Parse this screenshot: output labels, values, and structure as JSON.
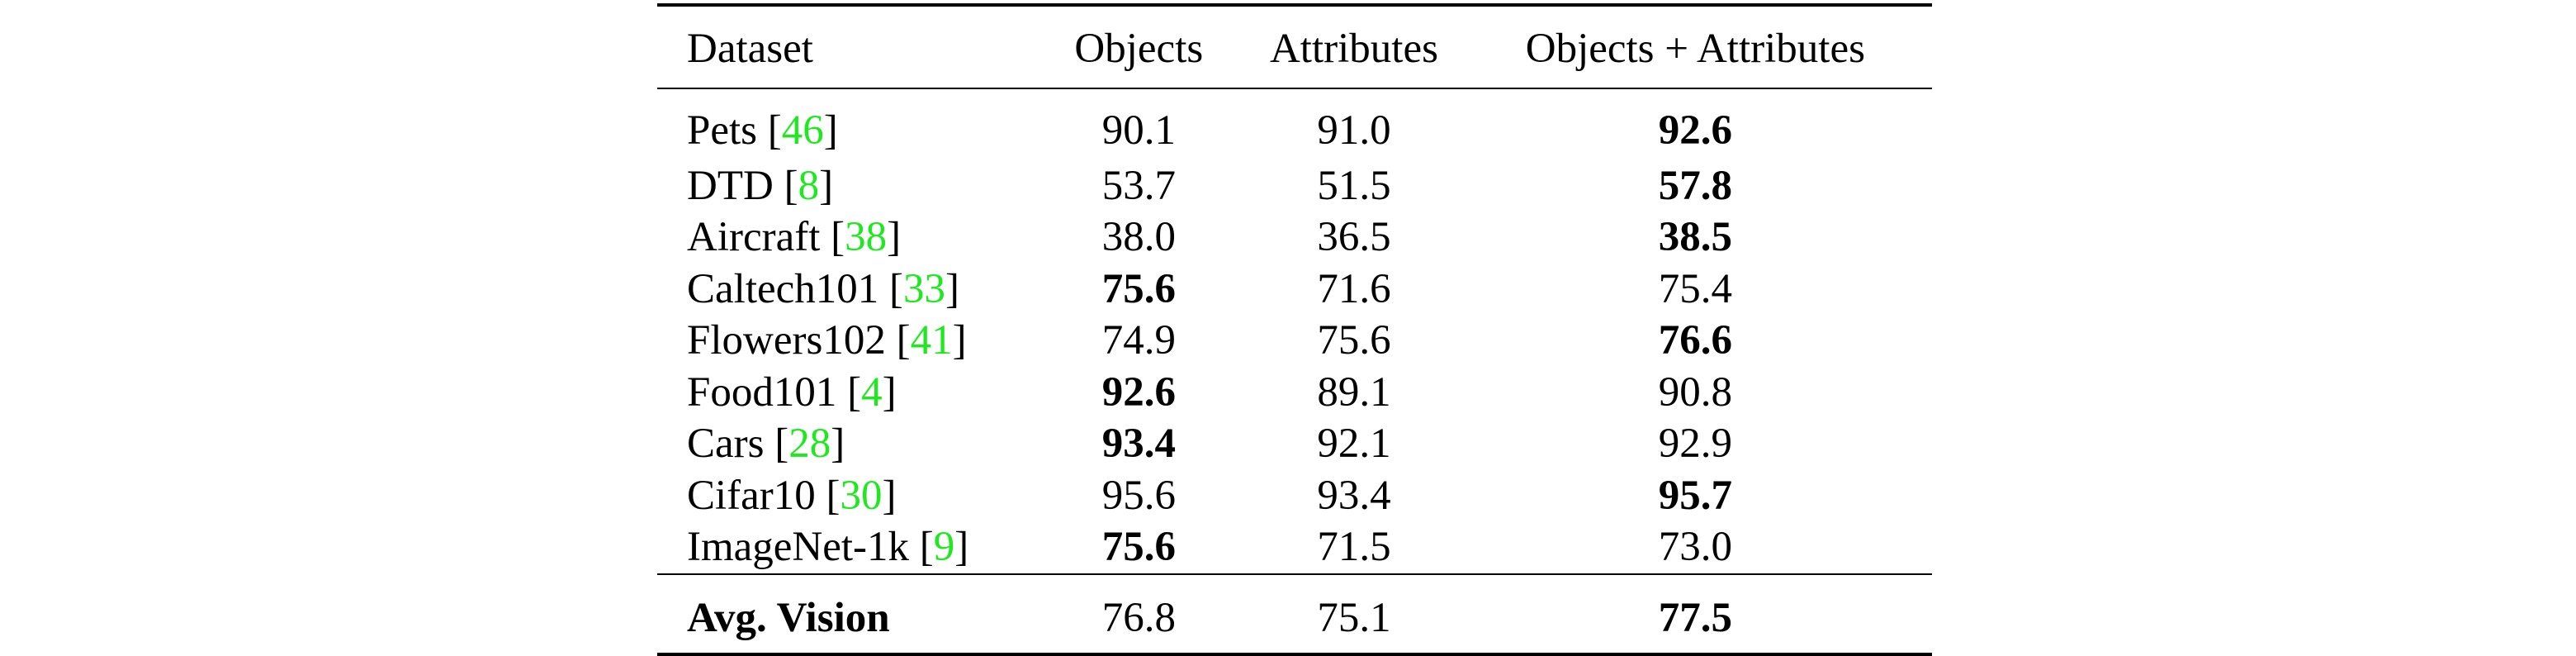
{
  "table": {
    "columns": [
      "Dataset",
      "Objects",
      "Attributes",
      "Objects + Attributes"
    ],
    "rows": [
      {
        "name": "Pets",
        "cite": "46",
        "objects": "90.1",
        "attributes": "91.0",
        "both": "92.6",
        "best": "both"
      },
      {
        "name": "DTD",
        "cite": "8",
        "objects": "53.7",
        "attributes": "51.5",
        "both": "57.8",
        "best": "both"
      },
      {
        "name": "Aircraft",
        "cite": "38",
        "objects": "38.0",
        "attributes": "36.5",
        "both": "38.5",
        "best": "both"
      },
      {
        "name": "Caltech101",
        "cite": "33",
        "objects": "75.6",
        "attributes": "71.6",
        "both": "75.4",
        "best": "objects"
      },
      {
        "name": "Flowers102",
        "cite": "41",
        "objects": "74.9",
        "attributes": "75.6",
        "both": "76.6",
        "best": "both"
      },
      {
        "name": "Food101",
        "cite": "4",
        "objects": "92.6",
        "attributes": "89.1",
        "both": "90.8",
        "best": "objects"
      },
      {
        "name": "Cars",
        "cite": "28",
        "objects": "93.4",
        "attributes": "92.1",
        "both": "92.9",
        "best": "objects"
      },
      {
        "name": "Cifar10",
        "cite": "30",
        "objects": "95.6",
        "attributes": "93.4",
        "both": "95.7",
        "best": "both"
      },
      {
        "name": "ImageNet-1k",
        "cite": "9",
        "objects": "75.6",
        "attributes": "71.5",
        "both": "73.0",
        "best": "objects"
      }
    ],
    "average": {
      "name": "Avg. Vision",
      "objects": "76.8",
      "attributes": "75.1",
      "both": "77.5",
      "best": "both"
    }
  },
  "colors": {
    "citation": "#1ee81e",
    "text": "#000000",
    "background": "#ffffff"
  }
}
